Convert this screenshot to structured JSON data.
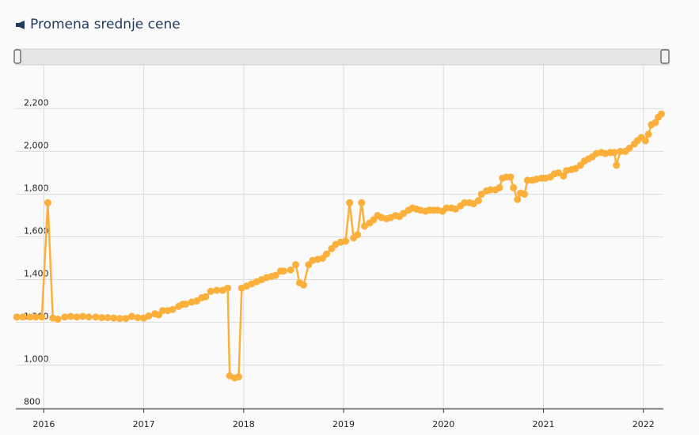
{
  "chart_data": {
    "type": "line",
    "title": "Promena srednje cene",
    "color": "#fbb03b",
    "grid": true,
    "xlim": [
      2015.72,
      2022.2
    ],
    "xticks": [
      2016,
      2017,
      2018,
      2019,
      2020,
      2021,
      2022
    ],
    "ylim": [
      795,
      2405
    ],
    "yticks": [
      800,
      {
        "value": 1000,
        "label": "1,000"
      },
      {
        "value": 1200,
        "label": "1,200"
      },
      {
        "value": 1400,
        "label": "1,400"
      },
      {
        "value": 1600,
        "label": "1,600"
      },
      {
        "value": 1800,
        "label": "1,800"
      },
      {
        "value": 2000,
        "label": "2,000"
      },
      {
        "value": 2200,
        "label": "2,200"
      }
    ],
    "x": [
      2015.73,
      2015.79,
      2015.86,
      2015.92,
      2015.98,
      2016.04,
      2016.09,
      2016.14,
      2016.21,
      2016.27,
      2016.33,
      2016.39,
      2016.45,
      2016.52,
      2016.58,
      2016.64,
      2016.7,
      2016.76,
      2016.82,
      2016.88,
      2016.94,
      2017.0,
      2017.05,
      2017.11,
      2017.15,
      2017.19,
      2017.24,
      2017.29,
      2017.35,
      2017.39,
      2017.42,
      2017.48,
      2017.53,
      2017.58,
      2017.62,
      2017.67,
      2017.73,
      2017.79,
      2017.84,
      2017.86,
      2017.91,
      2017.95,
      2017.98,
      2018.03,
      2018.08,
      2018.13,
      2018.18,
      2018.23,
      2018.28,
      2018.32,
      2018.37,
      2018.4,
      2018.47,
      2018.52,
      2018.56,
      2018.6,
      2018.65,
      2018.69,
      2018.74,
      2018.79,
      2018.83,
      2018.88,
      2018.92,
      2018.97,
      2019.02,
      2019.06,
      2019.1,
      2019.14,
      2019.18,
      2019.21,
      2019.26,
      2019.3,
      2019.34,
      2019.38,
      2019.43,
      2019.47,
      2019.52,
      2019.56,
      2019.6,
      2019.65,
      2019.69,
      2019.73,
      2019.77,
      2019.82,
      2019.86,
      2019.9,
      2019.94,
      2019.99,
      2020.03,
      2020.08,
      2020.12,
      2020.17,
      2020.21,
      2020.26,
      2020.3,
      2020.35,
      2020.38,
      2020.43,
      2020.47,
      2020.52,
      2020.56,
      2020.59,
      2020.63,
      2020.67,
      2020.7,
      2020.74,
      2020.77,
      2020.81,
      2020.84,
      2020.89,
      2020.93,
      2020.98,
      2021.02,
      2021.07,
      2021.11,
      2021.15,
      2021.2,
      2021.23,
      2021.28,
      2021.32,
      2021.37,
      2021.41,
      2021.45,
      2021.49,
      2021.53,
      2021.58,
      2021.62,
      2021.67,
      2021.71,
      2021.73,
      2021.77,
      2021.82,
      2021.86,
      2021.91,
      2021.94,
      2021.98,
      2022.02,
      2022.05,
      2022.08,
      2022.12,
      2022.15,
      2022.18
    ],
    "values": [
      1225,
      1225,
      1225,
      1225,
      1225,
      1760,
      1220,
      1215,
      1225,
      1228,
      1225,
      1228,
      1225,
      1225,
      1222,
      1222,
      1220,
      1218,
      1218,
      1228,
      1222,
      1220,
      1230,
      1240,
      1235,
      1255,
      1255,
      1260,
      1275,
      1285,
      1285,
      1295,
      1300,
      1315,
      1320,
      1345,
      1350,
      1350,
      1360,
      950,
      940,
      945,
      1360,
      1370,
      1380,
      1390,
      1400,
      1410,
      1415,
      1420,
      1440,
      1440,
      1445,
      1470,
      1385,
      1375,
      1470,
      1490,
      1495,
      1500,
      1520,
      1545,
      1565,
      1575,
      1580,
      1760,
      1595,
      1610,
      1760,
      1650,
      1665,
      1680,
      1700,
      1690,
      1685,
      1690,
      1700,
      1695,
      1710,
      1725,
      1735,
      1730,
      1725,
      1720,
      1725,
      1725,
      1725,
      1720,
      1735,
      1735,
      1730,
      1745,
      1760,
      1760,
      1755,
      1770,
      1800,
      1815,
      1820,
      1820,
      1830,
      1875,
      1880,
      1880,
      1830,
      1775,
      1805,
      1800,
      1865,
      1865,
      1870,
      1875,
      1875,
      1880,
      1895,
      1900,
      1885,
      1910,
      1915,
      1920,
      1935,
      1955,
      1965,
      1975,
      1990,
      1995,
      1990,
      1995,
      1995,
      1935,
      2000,
      2000,
      2015,
      2035,
      2050,
      2065,
      2050,
      2080,
      2125,
      2135,
      2160,
      2175
    ]
  }
}
